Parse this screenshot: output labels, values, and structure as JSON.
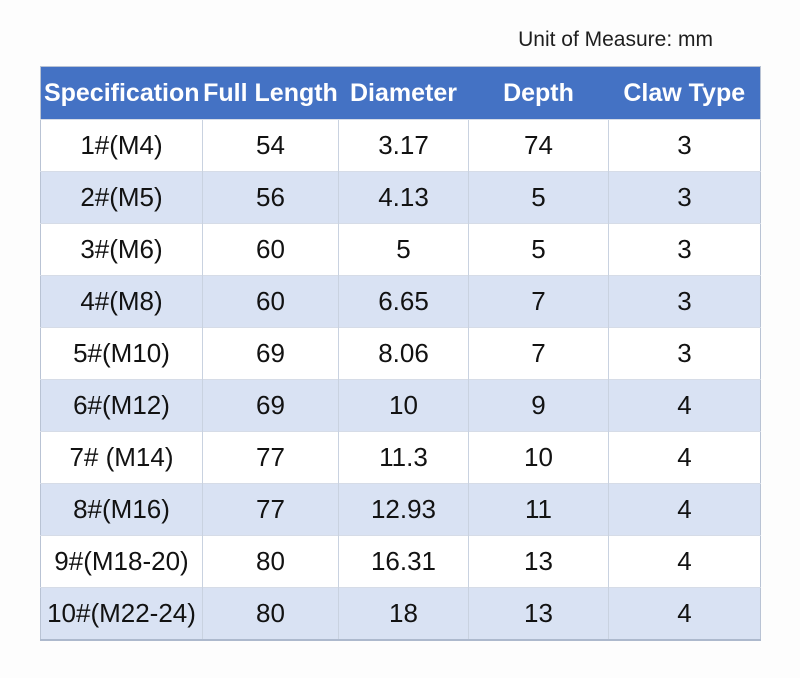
{
  "page": {
    "unit_label": "Unit of Measure: mm"
  },
  "colors": {
    "header_bg": "#4472c4",
    "header_text": "#ffffff",
    "row_alt_bg": "#d9e2f3",
    "row_bg": "#ffffff",
    "grid_line": "#c9d2e0",
    "body_text": "#121212"
  },
  "table": {
    "headers": [
      "Specification",
      "Full Length",
      "Diameter",
      "Depth",
      "Claw Type"
    ],
    "rows": [
      [
        "1#(M4)",
        "54",
        "3.17",
        "74",
        "3"
      ],
      [
        "2#(M5)",
        "56",
        "4.13",
        "5",
        "3"
      ],
      [
        "3#(M6)",
        "60",
        "5",
        "5",
        "3"
      ],
      [
        "4#(M8)",
        "60",
        "6.65",
        "7",
        "3"
      ],
      [
        "5#(M10)",
        "69",
        "8.06",
        "7",
        "3"
      ],
      [
        "6#(M12)",
        "69",
        "10",
        "9",
        "4"
      ],
      [
        "7# (M14)",
        "77",
        "11.3",
        "10",
        "4"
      ],
      [
        "8#(M16)",
        "77",
        "12.93",
        "11",
        "4"
      ],
      [
        "9#(M18-20)",
        "80",
        "16.31",
        "13",
        "4"
      ],
      [
        "10#(M22-24)",
        "80",
        "18",
        "13",
        "4"
      ]
    ]
  }
}
